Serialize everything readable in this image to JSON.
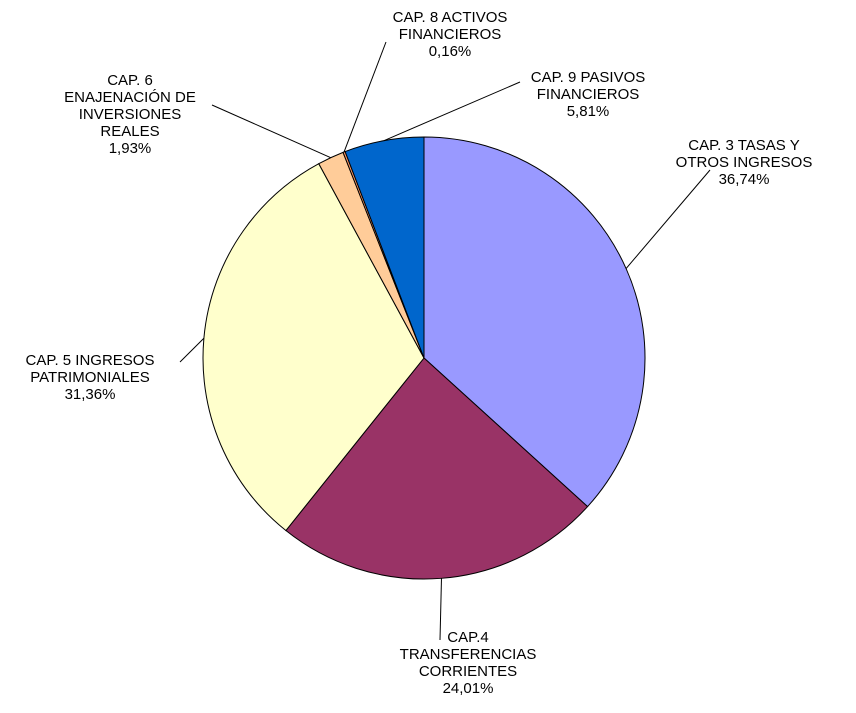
{
  "chart_data": {
    "type": "pie",
    "title": "",
    "slices": [
      {
        "name": "CAP. 3 TASAS Y OTROS INGRESOS",
        "lines": [
          "CAP. 3 TASAS Y",
          "OTROS INGRESOS"
        ],
        "value": 36.74,
        "pct_label": "36,74%",
        "color": "#9999FF"
      },
      {
        "name": "CAP.4 TRANSFERENCIAS CORRIENTES",
        "lines": [
          "CAP.4",
          "TRANSFERENCIAS",
          "CORRIENTES"
        ],
        "value": 24.01,
        "pct_label": "24,01%",
        "color": "#993366"
      },
      {
        "name": "CAP. 5 INGRESOS PATRIMONIALES",
        "lines": [
          "CAP. 5 INGRESOS",
          "PATRIMONIALES"
        ],
        "value": 31.36,
        "pct_label": "31,36%",
        "color": "#FFFFCC"
      },
      {
        "name": "CAP. 6 ENAJENACIÓN DE INVERSIONES REALES",
        "lines": [
          "CAP. 6",
          "ENAJENACIÓN DE",
          "INVERSIONES",
          "REALES"
        ],
        "value": 1.93,
        "pct_label": "1,93%",
        "color": "#FFCC99"
      },
      {
        "name": "CAP. 8 ACTIVOS FINANCIEROS",
        "lines": [
          "CAP. 8 ACTIVOS",
          "FINANCIEROS"
        ],
        "value": 0.16,
        "pct_label": "0,16%",
        "color": "#FF9966"
      },
      {
        "name": "CAP. 9 PASIVOS FINANCIEROS",
        "lines": [
          "CAP. 9 PASIVOS",
          "FINANCIEROS"
        ],
        "value": 5.81,
        "pct_label": "5,81%",
        "color": "#0066CC"
      }
    ],
    "start": "12 o'clock",
    "direction": "clockwise",
    "legend": "none"
  }
}
